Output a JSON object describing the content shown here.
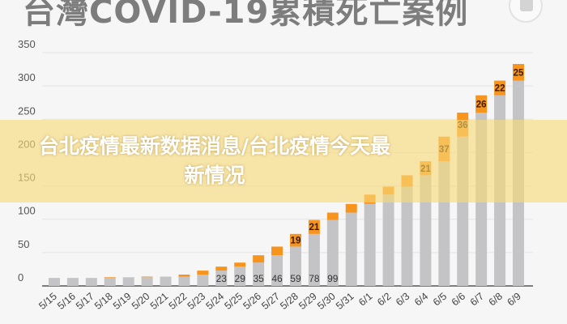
{
  "chart_data": {
    "type": "bar",
    "stacked": true,
    "title": "台灣COVID-19累積死亡案例",
    "xlabel": "",
    "ylabel": "",
    "ylim": [
      0,
      350
    ],
    "yticks": [
      0,
      50,
      100,
      150,
      200,
      250,
      300,
      350
    ],
    "grid": true,
    "categories": [
      "5/15",
      "5/16",
      "5/17",
      "5/18",
      "5/19",
      "5/20",
      "5/21",
      "5/22",
      "5/23",
      "5/24",
      "5/25",
      "5/26",
      "5/27",
      "5/28",
      "5/29",
      "5/30",
      "5/31",
      "6/1",
      "6/2",
      "6/3",
      "6/4",
      "6/5",
      "6/6",
      "6/7",
      "6/8",
      "6/9"
    ],
    "series": [
      {
        "color": "#c4c4c6",
        "values": [
          12,
          12,
          12,
          12,
          13,
          13,
          14,
          14,
          17,
          23,
          29,
          35,
          46,
          59,
          78,
          99,
          110,
          123,
          137,
          149,
          166,
          187,
          224,
          260,
          286,
          308
        ]
      },
      {
        "color": "#f7941d",
        "values": [
          0,
          0,
          0,
          1,
          0,
          1,
          0,
          3,
          6,
          6,
          6,
          11,
          13,
          19,
          21,
          11,
          13,
          14,
          12,
          17,
          21,
          37,
          36,
          26,
          22,
          25
        ]
      }
    ],
    "base_labels": {
      "5/24": "23",
      "5/25": "29",
      "5/26": "35",
      "5/27": "46",
      "5/28": "59",
      "5/29": "78",
      "5/30": "99"
    },
    "new_labels": {
      "5/28": "19",
      "5/29": "21",
      "6/4": "21",
      "6/5": "37",
      "6/6": "36",
      "6/7": "26",
      "6/8": "22",
      "6/9": "25"
    }
  },
  "overlay": {
    "headline": "台北疫情最新数据消息/台北疫情今天最新情况"
  }
}
